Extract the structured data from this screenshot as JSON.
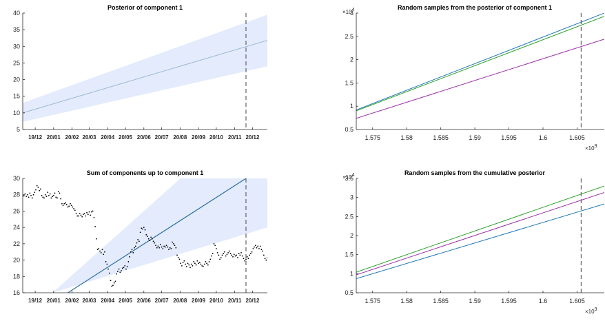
{
  "chart_data": [
    {
      "id": "p1",
      "type": "area",
      "title": "Posterior of component 1",
      "x_axis": "date",
      "xlim": [
        "2019-11-10",
        "2020-12-26"
      ],
      "ylim": [
        5,
        40
      ],
      "yticks": [
        5,
        10,
        15,
        20,
        25,
        30,
        35,
        40
      ],
      "xticks": [
        {
          "date": "2019-12-01",
          "label": "19/12"
        },
        {
          "date": "2020-01-01",
          "label": "20/01"
        },
        {
          "date": "2020-02-01",
          "label": "20/02"
        },
        {
          "date": "2020-03-01",
          "label": "20/03"
        },
        {
          "date": "2020-04-01",
          "label": "20/04"
        },
        {
          "date": "2020-05-01",
          "label": "20/05"
        },
        {
          "date": "2020-06-01",
          "label": "20/06"
        },
        {
          "date": "2020-07-01",
          "label": "20/07"
        },
        {
          "date": "2020-08-01",
          "label": "20/08"
        },
        {
          "date": "2020-09-01",
          "label": "20/09"
        },
        {
          "date": "2020-10-01",
          "label": "20/10"
        },
        {
          "date": "2020-11-01",
          "label": "20/11"
        },
        {
          "date": "2020-12-01",
          "label": "20/12"
        }
      ],
      "vline": "2020-11-20",
      "band": {
        "x": [
          "2019-11-10",
          "2020-12-26"
        ],
        "lower": [
          7.3,
          24.0
        ],
        "upper": [
          13.0,
          39.5
        ],
        "color": "#e3ebfd"
      },
      "series": [
        {
          "x": [
            "2019-11-10",
            "2020-12-26"
          ],
          "y": [
            10.0,
            31.8
          ],
          "color": "#9fb8d3"
        }
      ]
    },
    {
      "id": "p2",
      "type": "line",
      "title": "Random samples from the posterior of component 1",
      "x_axis": "numeric",
      "xlim": [
        1572600000,
        1609000000
      ],
      "ylim": [
        5000,
        30000
      ],
      "yticks": [
        5000,
        10000,
        15000,
        20000,
        25000,
        30000
      ],
      "ytick_labels": [
        "0.5",
        "1",
        "1.5",
        "2",
        "2.5",
        "3"
      ],
      "xticks": [
        1575000000,
        1580000000,
        1585000000,
        1590000000,
        1595000000,
        1600000000,
        1605000000
      ],
      "xtick_labels": [
        "1.575",
        "1.58",
        "1.585",
        "1.59",
        "1.595",
        "1.6",
        "1.605"
      ],
      "y_exponent": "4",
      "x_exponent": "9",
      "vline": 1605600000,
      "series": [
        {
          "x": [
            1572600000,
            1609000000
          ],
          "y": [
            9200,
            30000
          ],
          "color": "#1f77b4"
        },
        {
          "x": [
            1572600000,
            1609000000
          ],
          "y": [
            9000,
            29300
          ],
          "color": "#2ca02c"
        },
        {
          "x": [
            1572600000,
            1609000000
          ],
          "y": [
            7400,
            24400
          ],
          "color": "#9b30a8"
        }
      ]
    },
    {
      "id": "p3",
      "type": "scatter",
      "title": "Sum of components up to component 1",
      "x_axis": "date",
      "xlim": [
        "2019-11-10",
        "2020-12-26"
      ],
      "ylim": [
        16,
        30
      ],
      "yticks": [
        16,
        18,
        20,
        22,
        24,
        26,
        28,
        30
      ],
      "xticks": [
        {
          "date": "2019-12-01",
          "label": "19/12"
        },
        {
          "date": "2020-01-01",
          "label": "20/01"
        },
        {
          "date": "2020-02-01",
          "label": "20/02"
        },
        {
          "date": "2020-03-01",
          "label": "20/03"
        },
        {
          "date": "2020-04-01",
          "label": "20/04"
        },
        {
          "date": "2020-05-01",
          "label": "20/05"
        },
        {
          "date": "2020-06-01",
          "label": "20/06"
        },
        {
          "date": "2020-07-01",
          "label": "20/07"
        },
        {
          "date": "2020-08-01",
          "label": "20/08"
        },
        {
          "date": "2020-09-01",
          "label": "20/09"
        },
        {
          "date": "2020-10-01",
          "label": "20/10"
        },
        {
          "date": "2020-11-01",
          "label": "20/11"
        },
        {
          "date": "2020-12-01",
          "label": "20/12"
        }
      ],
      "vline": "2020-11-20",
      "band": {
        "x": [
          "2019-12-30",
          "2020-12-26"
        ],
        "lower": [
          16.0,
          24.0
        ],
        "upper": [
          16.0,
          39.5
        ],
        "color": "#e3ebfd"
      },
      "line": {
        "x": [
          "2020-01-25",
          "2020-11-20"
        ],
        "y": [
          16.0,
          30.0
        ],
        "color": "#2e6f9e"
      },
      "observations": {
        "start": "2019-11-10",
        "y": [
          27.8,
          27.9,
          28.1,
          27.8,
          28.0,
          27.7,
          28.2,
          27.9,
          27.6,
          28.0,
          28.3,
          28.6,
          29.1,
          28.9,
          28.5,
          28.7,
          27.9,
          27.7,
          27.6,
          28.0,
          27.8,
          28.3,
          27.9,
          28.1,
          27.6,
          27.8,
          27.9,
          28.2,
          27.7,
          27.6,
          28.4,
          28.2,
          27.5,
          26.9,
          26.7,
          26.9,
          27.0,
          26.8,
          26.5,
          26.6,
          26.9,
          26.7,
          26.5,
          26.3,
          26.1,
          25.7,
          25.4,
          25.4,
          25.7,
          25.5,
          25.3,
          25.6,
          25.7,
          25.4,
          25.8,
          25.6,
          25.9,
          25.5,
          25.9,
          26.0,
          25.2,
          24.1,
          22.6,
          21.3,
          21.4,
          21.1,
          20.9,
          21.3,
          20.7,
          21.0,
          19.8,
          19.5,
          18.9,
          18.4,
          17.5,
          16.8,
          16.9,
          17.2,
          17.4,
          18.3,
          18.6,
          18.9,
          18.5,
          18.7,
          19.0,
          19.1,
          19.3,
          18.9,
          19.2,
          19.8,
          20.4,
          21.0,
          21.3,
          20.9,
          21.5,
          21.7,
          22.1,
          22.5,
          22.3,
          23.4,
          23.9,
          23.8,
          24.0,
          23.7,
          23.1,
          22.9,
          22.6,
          22.4,
          22.8,
          22.6,
          22.3,
          22.1,
          21.8,
          21.5,
          21.7,
          21.5,
          21.9,
          21.6,
          21.4,
          21.7,
          21.6,
          21.8,
          21.6,
          21.3,
          21.5,
          21.4,
          22.2,
          22.0,
          21.8,
          21.5,
          20.6,
          20.3,
          20.1,
          19.6,
          19.3,
          19.7,
          19.9,
          19.5,
          19.2,
          19.6,
          19.4,
          19.1,
          19.5,
          19.3,
          19.8,
          19.6,
          19.4,
          19.9,
          19.6,
          19.7,
          19.5,
          19.3,
          19.2,
          19.5,
          19.8,
          19.6,
          19.4,
          19.8,
          20.1,
          20.5,
          20.8,
          22.0,
          21.8,
          21.4,
          20.9,
          20.6,
          20.1,
          20.3,
          20.6,
          20.8,
          21.0,
          20.5,
          20.7,
          20.9,
          21.1,
          20.8,
          20.6,
          20.4,
          20.7,
          20.5,
          20.6,
          20.3,
          20.8,
          20.6,
          20.9,
          20.5,
          20.2,
          19.9,
          20.1,
          20.4,
          20.2,
          20.6,
          20.8,
          21.0,
          21.4,
          21.6,
          21.8,
          21.5,
          21.7,
          21.4,
          21.7,
          21.3,
          21.1,
          20.6,
          20.2,
          20.0,
          20.3,
          20.6,
          20.4,
          20.1,
          20.5,
          20.8
        ],
        "color": "#000000"
      }
    },
    {
      "id": "p4",
      "type": "line",
      "title": "Random samples from the cumulative posterior",
      "x_axis": "numeric",
      "xlim": [
        1572600000,
        1609000000
      ],
      "ylim": [
        5000,
        35000
      ],
      "yticks": [
        5000,
        10000,
        15000,
        20000,
        25000,
        30000,
        35000
      ],
      "ytick_labels": [
        "0.5",
        "1",
        "1.5",
        "2",
        "2.5",
        "3",
        "3.5"
      ],
      "xticks": [
        1575000000,
        1580000000,
        1585000000,
        1590000000,
        1595000000,
        1600000000,
        1605000000
      ],
      "xtick_labels": [
        "1.575",
        "1.58",
        "1.585",
        "1.59",
        "1.595",
        "1.6",
        "1.605"
      ],
      "y_exponent": "4",
      "x_exponent": "9",
      "vline": 1605600000,
      "series": [
        {
          "x": [
            1572600000,
            1609000000
          ],
          "y": [
            10400,
            33000
          ],
          "color": "#2ca02c"
        },
        {
          "x": [
            1572600000,
            1609000000
          ],
          "y": [
            9700,
            31300
          ],
          "color": "#9b30a8"
        },
        {
          "x": [
            1572600000,
            1609000000
          ],
          "y": [
            8700,
            28300
          ],
          "color": "#1f77b4"
        }
      ]
    }
  ],
  "style": {
    "axis_color": "#262626",
    "vline_color": "#555555",
    "band_color": "#e3ebfd"
  }
}
